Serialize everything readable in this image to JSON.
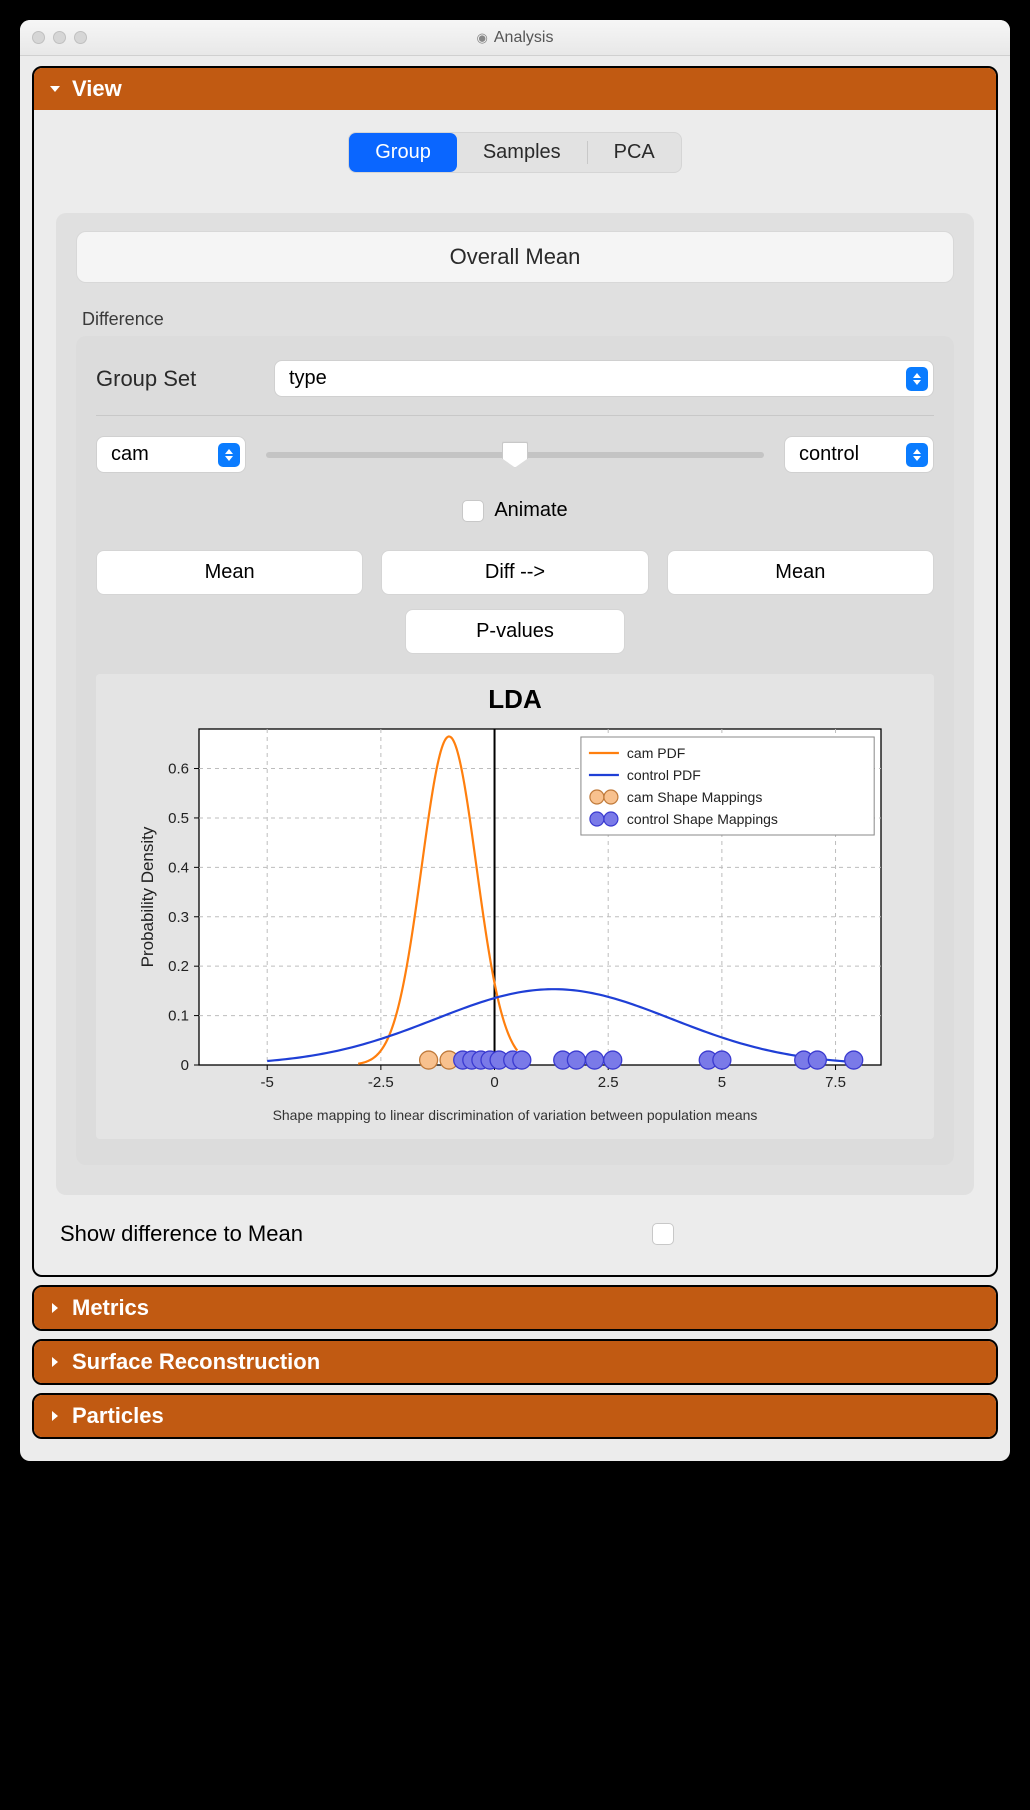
{
  "window": {
    "title": "Analysis"
  },
  "sections": [
    {
      "key": "view",
      "label": "View",
      "expanded": true
    },
    {
      "key": "metrics",
      "label": "Metrics",
      "expanded": false
    },
    {
      "key": "surface",
      "label": "Surface Reconstruction",
      "expanded": false
    },
    {
      "key": "particles",
      "label": "Particles",
      "expanded": false
    }
  ],
  "tabs": {
    "items": [
      "Group",
      "Samples",
      "PCA"
    ],
    "active": 0
  },
  "view": {
    "overall_mean": "Overall Mean",
    "difference_label": "Difference",
    "group_set_label": "Group Set",
    "group_set_value": "type",
    "slider": {
      "left": "cam",
      "right": "control",
      "value": 0.5
    },
    "animate_label": "Animate",
    "buttons": {
      "mean_left": "Mean",
      "diff": "Diff -->",
      "mean_right": "Mean",
      "pvalues": "P-values"
    },
    "show_diff_label": "Show difference to Mean"
  },
  "chart": {
    "type": "line",
    "title": "LDA",
    "xlabel": "Shape mapping to linear discrimination of variation between population means",
    "ylabel": "Probability Density",
    "xlim": [
      -6.5,
      8.5
    ],
    "ylim": [
      0,
      0.68
    ],
    "xticks": [
      -5,
      -2.5,
      0,
      2.5,
      5,
      7.5
    ],
    "yticks": [
      0,
      0.1,
      0.2,
      0.3,
      0.4,
      0.5,
      0.6
    ],
    "background": "#ffffff",
    "grid_color": "#bdbdbd",
    "axis_color": "#000000",
    "series": [
      {
        "name": "cam PDF",
        "color": "#ff7f0e",
        "line_width": 2.2,
        "mu": -1.0,
        "sigma": 0.6,
        "scale": 1.0,
        "x_start": -3.0,
        "x_end": 0.5
      },
      {
        "name": "control PDF",
        "color": "#1f3fd6",
        "line_width": 2.2,
        "mu": 1.3,
        "sigma": 2.6,
        "scale": 1.0,
        "x_start": -5.0,
        "x_end": 8.0
      }
    ],
    "scatter": [
      {
        "name": "cam Shape Mappings",
        "fill": "#f8c18e",
        "stroke": "#c07a3a",
        "radius": 9,
        "y": 0.01,
        "x": [
          -1.45,
          -1.0
        ]
      },
      {
        "name": "control Shape Mappings",
        "fill": "#7a7ae8",
        "stroke": "#3a3ad0",
        "radius": 9,
        "y": 0.01,
        "x": [
          -0.7,
          -0.5,
          -0.3,
          -0.1,
          0.1,
          0.4,
          0.6,
          1.5,
          1.8,
          2.2,
          2.6,
          4.7,
          5.0,
          6.8,
          7.1,
          7.9
        ]
      }
    ],
    "legend": {
      "items": [
        {
          "label": "cam PDF",
          "type": "line",
          "color": "#ff7f0e"
        },
        {
          "label": "control PDF",
          "type": "line",
          "color": "#1f3fd6"
        },
        {
          "label": "cam Shape Mappings",
          "type": "dots",
          "fill": "#f8c18e",
          "stroke": "#c07a3a"
        },
        {
          "label": "control Shape Mappings",
          "type": "dots",
          "fill": "#7a7ae8",
          "stroke": "#3a3ad0"
        }
      ]
    }
  }
}
